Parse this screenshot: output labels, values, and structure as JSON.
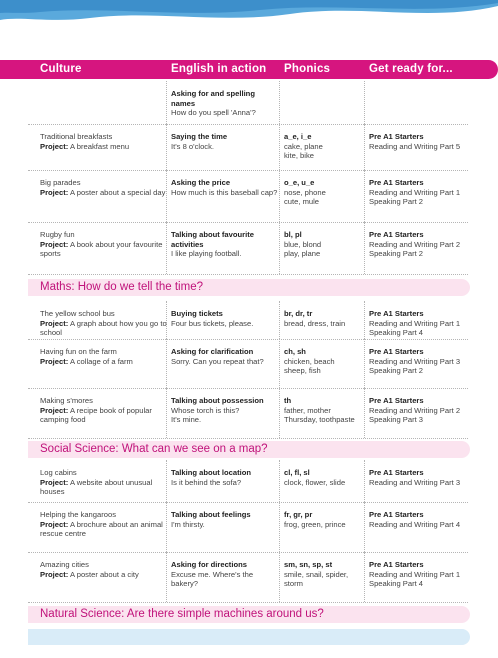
{
  "columns": [
    "Culture",
    "English in action",
    "Phonics",
    "Get ready for..."
  ],
  "groups": [
    {
      "title": "",
      "rows": [
        {
          "culture": {
            "title": "",
            "project": ""
          },
          "english": {
            "title": "Asking for and spelling names",
            "lines": [
              "How do you spell 'Anna'?"
            ]
          },
          "phonics": {
            "title": "",
            "lines": []
          },
          "ready": {
            "title": "",
            "lines": []
          }
        },
        {
          "culture": {
            "title": "Traditional breakfasts",
            "project": "A breakfast menu"
          },
          "english": {
            "title": "Saying the time",
            "lines": [
              "It's 8 o'clock."
            ]
          },
          "phonics": {
            "title": "a_e, i_e",
            "lines": [
              "cake, plane",
              "kite, bike"
            ]
          },
          "ready": {
            "title": "Pre A1 Starters",
            "lines": [
              "Reading and Writing Part 5"
            ]
          }
        },
        {
          "culture": {
            "title": "Big parades",
            "project": "A poster about a special day"
          },
          "english": {
            "title": "Asking the price",
            "lines": [
              "How much is this baseball cap?"
            ]
          },
          "phonics": {
            "title": "o_e, u_e",
            "lines": [
              "nose, phone",
              "cute, mule"
            ]
          },
          "ready": {
            "title": "Pre A1 Starters",
            "lines": [
              "Reading and Writing Part 1",
              "Speaking Part 2"
            ]
          }
        },
        {
          "culture": {
            "title": "Rugby fun",
            "project": "A book about your favourite sports"
          },
          "english": {
            "title": "Talking about favourite activities",
            "lines": [
              "I like playing football."
            ]
          },
          "phonics": {
            "title": "bl, pl",
            "lines": [
              "blue, blond",
              "play, plane"
            ]
          },
          "ready": {
            "title": "Pre A1 Starters",
            "lines": [
              "Reading and Writing Part 2",
              "Speaking Part 2"
            ]
          }
        }
      ]
    },
    {
      "title": "Maths: How do we tell the time?",
      "rows": [
        {
          "culture": {
            "title": "The yellow school bus",
            "project": "A graph about how you go to school"
          },
          "english": {
            "title": "Buying tickets",
            "lines": [
              "Four bus tickets, please."
            ]
          },
          "phonics": {
            "title": "br, dr, tr",
            "lines": [
              "bread, dress, train"
            ]
          },
          "ready": {
            "title": "Pre A1 Starters",
            "lines": [
              "Reading and Writing Part 1",
              "Speaking Part 4"
            ]
          }
        },
        {
          "culture": {
            "title": "Having fun on the farm",
            "project": "A collage of a farm"
          },
          "english": {
            "title": "Asking for clarification",
            "lines": [
              "Sorry. Can you repeat that?"
            ]
          },
          "phonics": {
            "title": "ch, sh",
            "lines": [
              "chicken, beach",
              "sheep, fish"
            ]
          },
          "ready": {
            "title": "Pre A1 Starters",
            "lines": [
              "Reading and Writing Part 3",
              "Speaking Part 2"
            ]
          }
        },
        {
          "culture": {
            "title": "Making s'mores",
            "project": "A recipe book of popular camping food"
          },
          "english": {
            "title": "Talking about possession",
            "lines": [
              "Whose torch is this?",
              "It's mine."
            ]
          },
          "phonics": {
            "title": "th",
            "lines": [
              "father, mother",
              "Thursday, toothpaste"
            ]
          },
          "ready": {
            "title": "Pre A1 Starters",
            "lines": [
              "Reading and Writing Part 2",
              "Speaking Part 3"
            ]
          }
        }
      ]
    },
    {
      "title": "Social Science: What can we see on a map?",
      "rows": [
        {
          "culture": {
            "title": "Log cabins",
            "project": "A website about unusual houses"
          },
          "english": {
            "title": "Talking about location",
            "lines": [
              "Is it behind the sofa?"
            ]
          },
          "phonics": {
            "title": "cl, fl, sl",
            "lines": [
              "clock, flower, slide"
            ]
          },
          "ready": {
            "title": "Pre A1 Starters",
            "lines": [
              "Reading and Writing Part 3"
            ]
          }
        },
        {
          "culture": {
            "title": "Helping the kangaroos",
            "project": "A brochure about an animal rescue centre"
          },
          "english": {
            "title": "Talking about feelings",
            "lines": [
              "I'm thirsty."
            ]
          },
          "phonics": {
            "title": "fr, gr, pr",
            "lines": [
              "frog, green, prince"
            ]
          },
          "ready": {
            "title": "Pre A1 Starters",
            "lines": [
              "Reading and Writing Part 4"
            ]
          }
        },
        {
          "culture": {
            "title": "Amazing cities",
            "project": "A poster about a city"
          },
          "english": {
            "title": "Asking for directions",
            "lines": [
              "Excuse me. Where's the bakery?"
            ]
          },
          "phonics": {
            "title": "sm, sn, sp, st",
            "lines": [
              "smile, snail, spider, storm"
            ]
          },
          "ready": {
            "title": "Pre A1 Starters",
            "lines": [
              "Reading and Writing Part 1",
              "Speaking Part 4"
            ]
          }
        }
      ]
    },
    {
      "title": "Natural Science: Are there simple machines around us?",
      "rows": []
    }
  ],
  "project_label": "Project:",
  "colors": {
    "header": "#d6157f",
    "section_bg": "#fbe3ef",
    "section_text": "#c0127a",
    "wave": "#5aa9dc",
    "bottom_bar": "#d9ecf8"
  }
}
